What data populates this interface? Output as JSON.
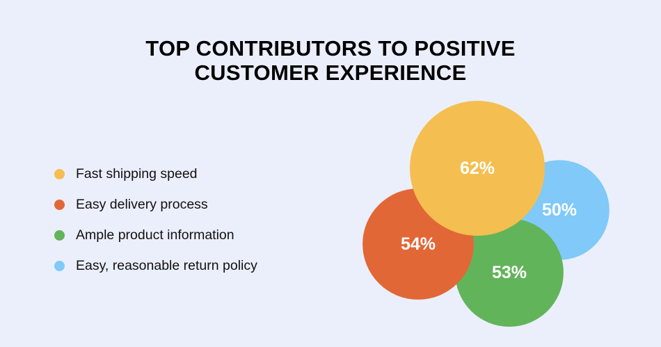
{
  "chart_data": {
    "type": "bubble",
    "title_lines": [
      "TOP CONTRIBUTORS TO POSITIVE",
      "CUSTOMER EXPERIENCE"
    ],
    "legend_placement": "left",
    "series": [
      {
        "name": "Fast shipping speed",
        "value": 62,
        "label": "62%",
        "color": "#f4bf50"
      },
      {
        "name": "Easy delivery process",
        "value": 54,
        "label": "54%",
        "color": "#e26737"
      },
      {
        "name": "Ample product information",
        "value": 53,
        "label": "53%",
        "color": "#62b45a"
      },
      {
        "name": "Easy, reasonable return policy",
        "value": 50,
        "label": "50%",
        "color": "#80c9f9"
      }
    ]
  }
}
